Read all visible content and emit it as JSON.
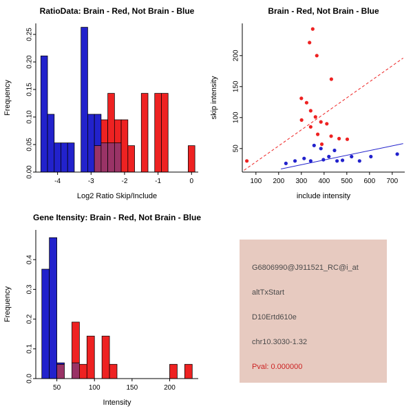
{
  "page": {
    "background": "#ffffff"
  },
  "colors": {
    "brain_red": "#ee2222",
    "not_brain_blue": "#2222cc",
    "overlap_purple": "#993366",
    "axis_black": "#000000",
    "info_bg": "#e7cac0",
    "info_text": "#4a4a4a",
    "pval_red": "#cc2222"
  },
  "chart_data": [
    {
      "type": "bar",
      "subtype": "histogram",
      "panel": "top-left",
      "title": "RatioData: Brain - Red, Not Brain - Blue",
      "xlabel": "Log2 Ratio Skip/Include",
      "ylabel": "Frequency",
      "xlim": [
        -4.65,
        0.2
      ],
      "ylim": [
        0,
        0.27
      ],
      "xticks": [
        "-4",
        "-3",
        "-2",
        "-1",
        "0"
      ],
      "yticks": [
        "0.00",
        "0.05",
        "0.10",
        "0.15",
        "0.20",
        "0.25"
      ],
      "bin_width": 0.2,
      "grid": false,
      "legend": "none",
      "overlap_color": "#993366",
      "series": [
        {
          "name": "Not Brain",
          "color": "#2222cc",
          "bins": [
            {
              "x": -4.5,
              "h": 0.211
            },
            {
              "x": -4.3,
              "h": 0.105
            },
            {
              "x": -4.1,
              "h": 0.053
            },
            {
              "x": -3.9,
              "h": 0.053
            },
            {
              "x": -3.7,
              "h": 0.053
            },
            {
              "x": -3.5,
              "h": 0.0
            },
            {
              "x": -3.3,
              "h": 0.263
            },
            {
              "x": -3.1,
              "h": 0.105
            },
            {
              "x": -2.9,
              "h": 0.105
            },
            {
              "x": -2.7,
              "h": 0.053
            },
            {
              "x": -2.5,
              "h": 0.053
            },
            {
              "x": -2.3,
              "h": 0.053
            }
          ]
        },
        {
          "name": "Brain",
          "color": "#ee2222",
          "bins": [
            {
              "x": -2.9,
              "h": 0.048
            },
            {
              "x": -2.7,
              "h": 0.095
            },
            {
              "x": -2.5,
              "h": 0.143
            },
            {
              "x": -2.3,
              "h": 0.095
            },
            {
              "x": -2.1,
              "h": 0.095
            },
            {
              "x": -1.9,
              "h": 0.048
            },
            {
              "x": -1.5,
              "h": 0.143
            },
            {
              "x": -1.1,
              "h": 0.143
            },
            {
              "x": -0.9,
              "h": 0.143
            },
            {
              "x": -0.1,
              "h": 0.048
            }
          ]
        }
      ]
    },
    {
      "type": "scatter",
      "panel": "top-right",
      "title": "Brain - Red, Not Brain - Blue",
      "xlabel": "include intensity",
      "ylabel": "skip intensity",
      "xlim": [
        40,
        755
      ],
      "ylim": [
        12,
        252
      ],
      "xticks": [
        "100",
        "200",
        "300",
        "400",
        "500",
        "600",
        "700"
      ],
      "yticks": [
        "50",
        "100",
        "150",
        "200"
      ],
      "grid": false,
      "legend": "none",
      "series": [
        {
          "name": "Brain",
          "color": "#ee2222",
          "points": [
            [
              60,
              30
            ],
            [
              350,
              243
            ],
            [
              336,
              221
            ],
            [
              368,
              200
            ],
            [
              432,
              162
            ],
            [
              300,
              131
            ],
            [
              323,
              124
            ],
            [
              341,
              111
            ],
            [
              301,
              96
            ],
            [
              362,
              101
            ],
            [
              386,
              93
            ],
            [
              412,
              90
            ],
            [
              341,
              85
            ],
            [
              372,
              73
            ],
            [
              431,
              70
            ],
            [
              466,
              66
            ],
            [
              502,
              65
            ],
            [
              390,
              57
            ]
          ]
        },
        {
          "name": "Not Brain",
          "color": "#2222cc",
          "points": [
            [
              232,
              26
            ],
            [
              272,
              30
            ],
            [
              312,
              34
            ],
            [
              341,
              30
            ],
            [
              356,
              55
            ],
            [
              386,
              50
            ],
            [
              397,
              32
            ],
            [
              421,
              37
            ],
            [
              446,
              47
            ],
            [
              457,
              30
            ],
            [
              481,
              31
            ],
            [
              521,
              37
            ],
            [
              556,
              30
            ],
            [
              606,
              37
            ],
            [
              722,
              41
            ]
          ]
        }
      ],
      "lines": [
        {
          "name": "brain-fit-line",
          "color": "#ee2222",
          "style": "dashed",
          "x1": 48,
          "y1": 15,
          "x2": 748,
          "y2": 196
        },
        {
          "name": "not-brain-fit-line",
          "color": "#2222cc",
          "style": "solid",
          "x1": 210,
          "y1": 17,
          "x2": 748,
          "y2": 58
        }
      ]
    },
    {
      "type": "bar",
      "subtype": "histogram",
      "panel": "bottom-left",
      "title": "Gene Itensity: Brain - Red, Not Brain - Blue",
      "xlabel": "Intensity",
      "ylabel": "Frequency",
      "xlim": [
        22,
        238
      ],
      "ylim": [
        0,
        0.5
      ],
      "xticks": [
        "50",
        "100",
        "150",
        "200"
      ],
      "yticks": [
        "0.0",
        "0.1",
        "0.2",
        "0.3",
        "0.4"
      ],
      "bin_width": 10,
      "grid": false,
      "legend": "none",
      "overlap_color": "#993366",
      "series": [
        {
          "name": "Not Brain",
          "color": "#2222cc",
          "bins": [
            {
              "x": 30,
              "h": 0.368
            },
            {
              "x": 40,
              "h": 0.474
            },
            {
              "x": 50,
              "h": 0.053
            },
            {
              "x": 70,
              "h": 0.053
            }
          ]
        },
        {
          "name": "Brain",
          "color": "#ee2222",
          "bins": [
            {
              "x": 50,
              "h": 0.048
            },
            {
              "x": 70,
              "h": 0.19
            },
            {
              "x": 80,
              "h": 0.048
            },
            {
              "x": 90,
              "h": 0.143
            },
            {
              "x": 110,
              "h": 0.143
            },
            {
              "x": 120,
              "h": 0.048
            },
            {
              "x": 200,
              "h": 0.048
            },
            {
              "x": 220,
              "h": 0.048
            }
          ]
        }
      ]
    }
  ],
  "info_panel": {
    "bg": "#e7cac0",
    "lines": [
      {
        "text": "G6806990@J911521_RC@i_at",
        "color": "#4a4a4a"
      },
      {
        "text": "altTxStart",
        "color": "#4a4a4a"
      },
      {
        "text": "D10Ertd610e",
        "color": "#4a4a4a"
      },
      {
        "text": "chr10.3030-1.32",
        "color": "#4a4a4a"
      },
      {
        "text": "Pval: 0.000000",
        "color": "#cc2222"
      }
    ]
  }
}
